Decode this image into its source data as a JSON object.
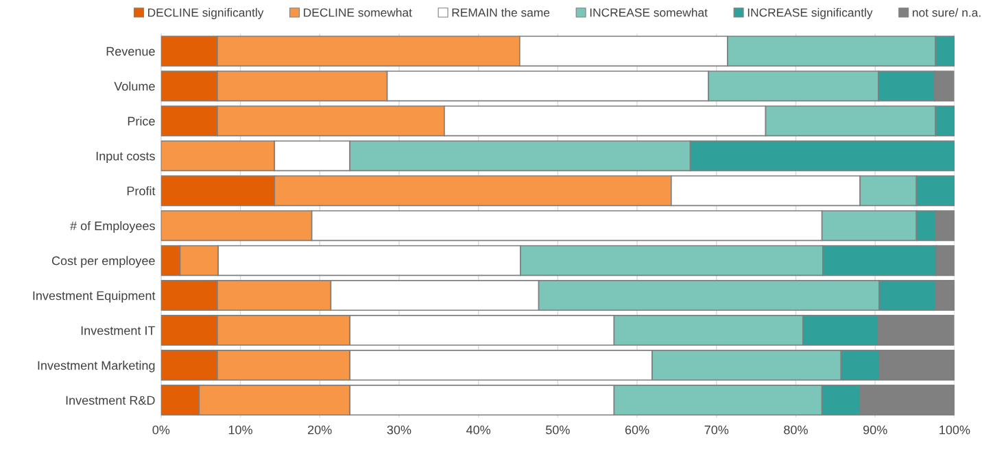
{
  "chart_data": {
    "type": "bar",
    "orientation": "horizontal",
    "stacked": true,
    "categories": [
      "Revenue",
      "Volume",
      "Price",
      "Input costs",
      "Profit",
      "# of Employees",
      "Cost per employee",
      "Investment Equipment",
      "Investment IT",
      "Investment Marketing",
      "Investment R&D"
    ],
    "series": [
      {
        "name": "DECLINE significantly",
        "color": "#e35f06",
        "values": [
          7.1,
          7.1,
          7.1,
          0,
          14.3,
          0,
          2.4,
          7.1,
          7.1,
          7.1,
          4.8
        ]
      },
      {
        "name": "DECLINE somewhat",
        "color": "#f79646",
        "values": [
          38.1,
          21.4,
          28.6,
          14.3,
          50.0,
          19.0,
          4.8,
          14.3,
          16.7,
          16.7,
          19.0
        ]
      },
      {
        "name": "REMAIN the same",
        "color": "#ffffff",
        "values": [
          26.2,
          40.5,
          40.5,
          9.5,
          23.8,
          64.3,
          38.1,
          26.2,
          33.3,
          38.1,
          33.3
        ]
      },
      {
        "name": "INCREASE somewhat",
        "color": "#7bc6b9",
        "values": [
          26.2,
          21.4,
          21.4,
          42.9,
          7.1,
          11.9,
          38.1,
          42.9,
          23.8,
          23.8,
          26.2
        ]
      },
      {
        "name": "INCREASE significantly",
        "color": "#30a09a",
        "values": [
          2.4,
          7.1,
          2.4,
          33.3,
          4.8,
          2.4,
          14.3,
          7.1,
          9.5,
          4.8,
          4.8
        ]
      },
      {
        "name": "not sure/ n.a.",
        "color": "#808080",
        "values": [
          0,
          2.4,
          0,
          0,
          0,
          2.4,
          2.4,
          2.4,
          9.5,
          9.5,
          11.9
        ]
      }
    ],
    "xlim": [
      0,
      100
    ],
    "xticks": [
      {
        "value": 0,
        "label": "0%"
      },
      {
        "value": 10,
        "label": "10%"
      },
      {
        "value": 20,
        "label": "20%"
      },
      {
        "value": 30,
        "label": "30%"
      },
      {
        "value": 40,
        "label": "40%"
      },
      {
        "value": 50,
        "label": "50%"
      },
      {
        "value": 60,
        "label": "60%"
      },
      {
        "value": 70,
        "label": "70%"
      },
      {
        "value": 80,
        "label": "80%"
      },
      {
        "value": 90,
        "label": "90%"
      },
      {
        "value": 100,
        "label": "100%"
      }
    ],
    "grid": "x",
    "legend": "top"
  }
}
